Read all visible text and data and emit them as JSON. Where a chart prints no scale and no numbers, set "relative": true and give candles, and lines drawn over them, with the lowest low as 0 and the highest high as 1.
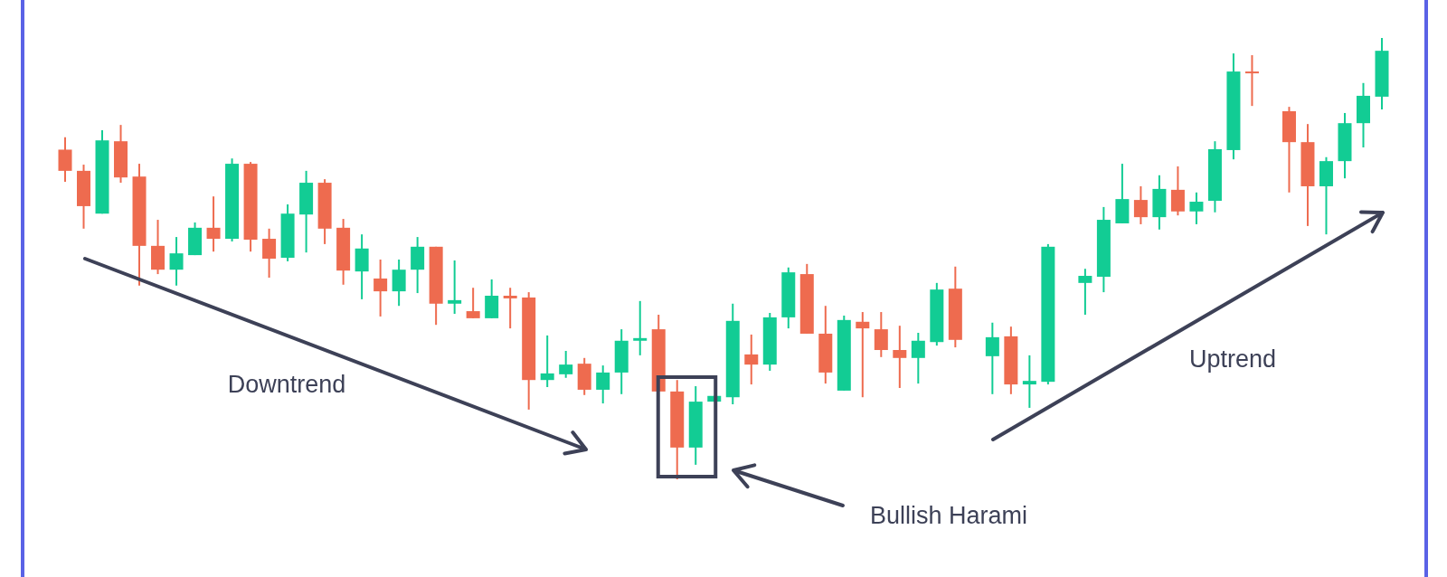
{
  "chart_data": {
    "type": "candlestick",
    "relative": true,
    "categories": [
      null,
      null,
      null,
      null,
      null,
      null,
      null,
      null,
      null,
      null,
      null,
      null,
      null,
      null,
      null,
      null,
      null,
      null,
      null,
      null,
      null,
      null,
      null,
      null,
      null,
      null,
      null,
      null,
      null,
      null,
      null,
      null,
      null,
      null,
      null,
      null,
      null,
      null,
      null,
      null,
      null,
      null,
      null,
      null,
      null,
      null,
      null,
      null,
      null,
      null,
      null,
      null,
      null,
      null,
      null,
      null,
      null,
      null,
      null,
      null,
      null,
      null,
      null,
      null,
      null,
      null,
      null,
      null,
      null,
      null,
      null,
      null
    ],
    "ohlc": [
      [
        0.747,
        0.775,
        0.674,
        0.699
      ],
      [
        0.699,
        0.713,
        0.568,
        0.619
      ],
      [
        0.602,
        0.791,
        0.602,
        0.768
      ],
      [
        0.766,
        0.803,
        0.672,
        0.684
      ],
      [
        0.686,
        0.715,
        0.439,
        0.529
      ],
      [
        0.529,
        0.588,
        0.465,
        0.475
      ],
      [
        0.475,
        0.549,
        0.439,
        0.512
      ],
      [
        0.508,
        0.582,
        0.508,
        0.57
      ],
      [
        0.57,
        0.641,
        0.516,
        0.545
      ],
      [
        0.545,
        0.727,
        0.539,
        0.715
      ],
      [
        0.715,
        0.719,
        0.516,
        0.543
      ],
      [
        0.545,
        0.568,
        0.457,
        0.5
      ],
      [
        0.502,
        0.623,
        0.494,
        0.602
      ],
      [
        0.6,
        0.699,
        0.514,
        0.672
      ],
      [
        0.672,
        0.68,
        0.533,
        0.568
      ],
      [
        0.57,
        0.59,
        0.441,
        0.473
      ],
      [
        0.471,
        0.555,
        0.408,
        0.523
      ],
      [
        0.455,
        0.498,
        0.369,
        0.426
      ],
      [
        0.426,
        0.498,
        0.393,
        0.475
      ],
      [
        0.475,
        0.549,
        0.422,
        0.527
      ],
      [
        0.527,
        0.527,
        0.35,
        0.398
      ],
      [
        0.398,
        0.496,
        0.375,
        0.406
      ],
      [
        0.381,
        0.434,
        0.365,
        0.365
      ],
      [
        0.365,
        0.453,
        0.365,
        0.416
      ],
      [
        0.416,
        0.434,
        0.342,
        0.41
      ],
      [
        0.412,
        0.424,
        0.158,
        0.225
      ],
      [
        0.225,
        0.326,
        0.209,
        0.24
      ],
      [
        0.238,
        0.291,
        0.23,
        0.26
      ],
      [
        0.262,
        0.275,
        0.191,
        0.203
      ],
      [
        0.203,
        0.258,
        0.172,
        0.242
      ],
      [
        0.242,
        0.34,
        0.193,
        0.314
      ],
      [
        0.314,
        0.404,
        0.281,
        0.32
      ],
      [
        0.34,
        0.373,
        0.199,
        0.199
      ],
      [
        0.199,
        0.225,
        0,
        0.072
      ],
      [
        0.072,
        0.211,
        0.033,
        0.176
      ],
      [
        0.176,
        0.189,
        0.176,
        0.189
      ],
      [
        0.186,
        0.398,
        0.17,
        0.359
      ],
      [
        0.283,
        0.328,
        0.215,
        0.26
      ],
      [
        0.26,
        0.377,
        0.246,
        0.367
      ],
      [
        0.367,
        0.48,
        0.342,
        0.469
      ],
      [
        0.465,
        0.488,
        0.33,
        0.33
      ],
      [
        0.33,
        0.393,
        0.217,
        0.242
      ],
      [
        0.201,
        0.371,
        0.201,
        0.361
      ],
      [
        0.357,
        0.379,
        0.186,
        0.342
      ],
      [
        0.34,
        0.379,
        0.277,
        0.293
      ],
      [
        0.293,
        0.348,
        0.207,
        0.275
      ],
      [
        0.275,
        0.332,
        0.217,
        0.314
      ],
      [
        0.311,
        0.445,
        0.303,
        0.43
      ],
      [
        0.432,
        0.482,
        0.299,
        0.316
      ],
      null,
      [
        0.279,
        0.355,
        0.193,
        0.322
      ],
      [
        0.324,
        0.346,
        0.193,
        0.215
      ],
      [
        0.215,
        0.281,
        0.162,
        0.223
      ],
      [
        0.221,
        0.533,
        0.215,
        0.527
      ],
      null,
      [
        0.445,
        0.477,
        0.373,
        0.461
      ],
      [
        0.459,
        0.617,
        0.424,
        0.588
      ],
      [
        0.58,
        0.715,
        0.58,
        0.635
      ],
      [
        0.633,
        0.664,
        0.578,
        0.594
      ],
      [
        0.594,
        0.689,
        0.566,
        0.658
      ],
      [
        0.656,
        0.709,
        0.598,
        0.607
      ],
      [
        0.607,
        0.65,
        0.578,
        0.629
      ],
      [
        0.631,
        0.766,
        0.605,
        0.748
      ],
      [
        0.746,
        0.965,
        0.725,
        0.924
      ],
      [
        0.924,
        0.961,
        0.846,
        0.92
      ],
      null,
      [
        0.834,
        0.844,
        0.65,
        0.764
      ],
      [
        0.764,
        0.805,
        0.574,
        0.664
      ],
      [
        0.664,
        0.73,
        0.555,
        0.721
      ],
      [
        0.721,
        0.83,
        0.682,
        0.807
      ],
      [
        0.807,
        0.898,
        0.752,
        0.869
      ],
      [
        0.867,
        1,
        0.838,
        0.971
      ]
    ],
    "colors": [
      "#ee6b4f",
      "#ee6b4f",
      "#12cc94",
      "#ee6b4f",
      "#ee6b4f",
      "#ee6b4f",
      "#12cc94",
      "#12cc94",
      "#ee6b4f",
      "#12cc94",
      "#ee6b4f",
      "#ee6b4f",
      "#12cc94",
      "#12cc94",
      "#ee6b4f",
      "#ee6b4f",
      "#12cc94",
      "#ee6b4f",
      "#12cc94",
      "#12cc94",
      "#ee6b4f",
      "#12cc94",
      "#ee6b4f",
      "#12cc94",
      "#ee6b4f",
      "#ee6b4f",
      "#12cc94",
      "#12cc94",
      "#ee6b4f",
      "#12cc94",
      "#12cc94",
      "#12cc94",
      "#ee6b4f",
      "#ee6b4f",
      "#12cc94",
      "#12cc94",
      "#12cc94",
      "#ee6b4f",
      "#12cc94",
      "#12cc94",
      "#ee6b4f",
      "#ee6b4f",
      "#12cc94",
      "#ee6b4f",
      "#ee6b4f",
      "#ee6b4f",
      "#12cc94",
      "#12cc94",
      "#ee6b4f",
      null,
      "#12cc94",
      "#ee6b4f",
      "#12cc94",
      "#12cc94",
      null,
      "#12cc94",
      "#12cc94",
      "#12cc94",
      "#ee6b4f",
      "#12cc94",
      "#ee6b4f",
      "#12cc94",
      "#12cc94",
      "#12cc94",
      "#ee6b4f",
      null,
      "#ee6b4f",
      "#ee6b4f",
      "#12cc94",
      "#12cc94",
      "#12cc94",
      "#12cc94"
    ],
    "annotations": [
      "Downtrend",
      "Uptrend",
      "Bullish Harami"
    ]
  }
}
